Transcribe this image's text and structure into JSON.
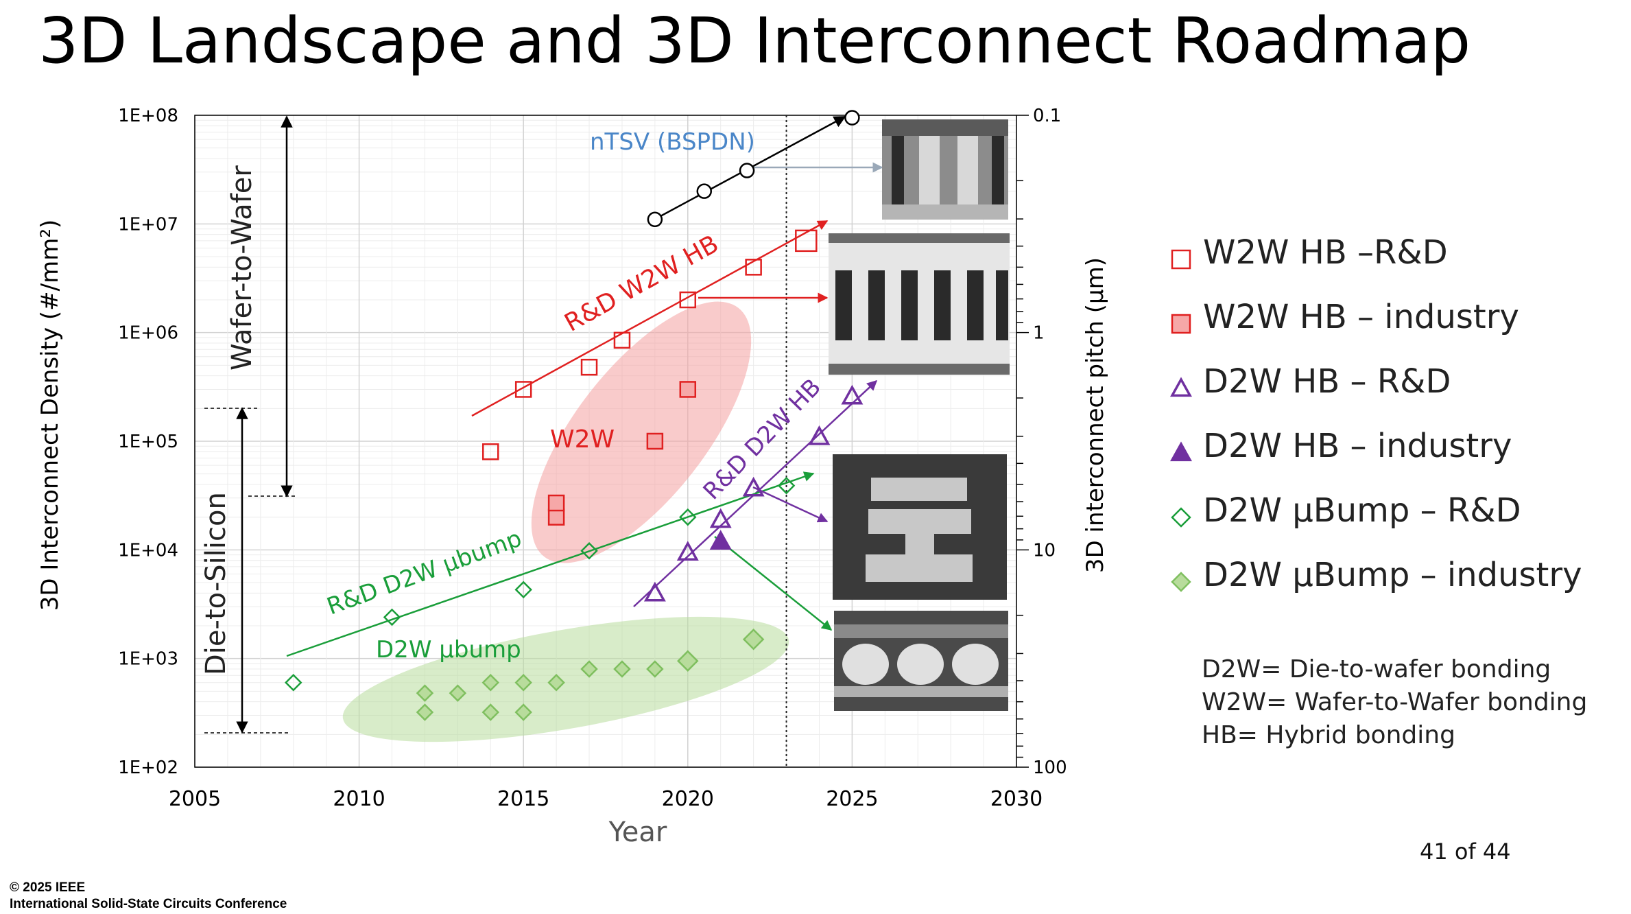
{
  "slide": {
    "title": "3D Landscape and 3D Interconnect Roadmap",
    "page": "41 of 44",
    "copyright_line1": "© 2025 IEEE",
    "copyright_line2": "International Solid-State Circuits Conference"
  },
  "legend": {
    "items": [
      {
        "marker": "open-square",
        "color": "#e02020",
        "label": "W2W HB –R&D"
      },
      {
        "marker": "filled-square",
        "color": "#e02020",
        "label": "W2W HB – industry"
      },
      {
        "marker": "open-triangle",
        "color": "#7030a0",
        "label": "D2W HB – R&D"
      },
      {
        "marker": "filled-triangle",
        "color": "#7030a0",
        "label": "D2W HB – industry"
      },
      {
        "marker": "open-diamond",
        "color": "#1a9e3a",
        "label": "D2W µBump – R&D"
      },
      {
        "marker": "filled-diamond",
        "color": "#7fbf5f",
        "label": "D2W µBump – industry"
      }
    ]
  },
  "notes": [
    "D2W= Die-to-wafer bonding",
    "W2W= Wafer-to-Wafer bonding",
    "HB= Hybrid bonding"
  ],
  "chart_data": {
    "type": "scatter",
    "xlabel": "Year",
    "ylabel": "3D Interconnect Density (#/mm²)",
    "y2label": "3D interconnect pitch (µm)",
    "xlim": [
      2005,
      2030
    ],
    "ylim": [
      100,
      100000000
    ],
    "yscale": "log",
    "x_ticks": [
      "2005",
      "2010",
      "2015",
      "2020",
      "2025",
      "2030"
    ],
    "y_ticks": [
      "1E+02",
      "1E+03",
      "1E+04",
      "1E+05",
      "1E+06",
      "1E+07",
      "1E+08"
    ],
    "y2_ticks": [
      "0.1",
      "1",
      "10",
      "100"
    ],
    "grid": true,
    "vertical_marker_year": 2023,
    "series": [
      {
        "name": "W2W HB –R&D",
        "color": "#e02020",
        "marker": "open-square",
        "x": [
          2014,
          2015,
          2017,
          2018,
          2020,
          2022,
          2023.6
        ],
        "y": [
          80000,
          300000,
          480000,
          850000,
          2000000,
          4000000,
          7000000
        ]
      },
      {
        "name": "W2W HB – industry",
        "color": "#e02020",
        "marker": "filled-square",
        "x": [
          2016,
          2016,
          2019,
          2020
        ],
        "y": [
          20000,
          27000,
          100000,
          300000
        ]
      },
      {
        "name": "D2W HB – R&D",
        "color": "#7030a0",
        "marker": "open-triangle",
        "x": [
          2019,
          2020,
          2021,
          2022,
          2024,
          2025
        ],
        "y": [
          4000,
          9500,
          19000,
          37000,
          110000,
          260000
        ]
      },
      {
        "name": "D2W HB – industry",
        "color": "#7030a0",
        "marker": "filled-triangle",
        "x": [
          2021
        ],
        "y": [
          12000
        ]
      },
      {
        "name": "D2W µBump – R&D",
        "color": "#1a9e3a",
        "marker": "open-diamond",
        "x": [
          2008,
          2011,
          2015,
          2017,
          2020,
          2023
        ],
        "y": [
          600,
          2400,
          4300,
          9800,
          20000,
          39000
        ]
      },
      {
        "name": "D2W µBump – industry",
        "color": "#7fbf5f",
        "marker": "filled-diamond",
        "x": [
          2012,
          2012,
          2013,
          2014,
          2014,
          2015,
          2015,
          2016,
          2017,
          2018,
          2019,
          2020,
          2022
        ],
        "y": [
          480,
          320,
          480,
          600,
          320,
          600,
          320,
          600,
          800,
          800,
          800,
          950,
          1500
        ]
      },
      {
        "name": "nTSV (BSPDN)",
        "color": "#000000",
        "marker": "open-circle",
        "x": [
          2019,
          2020.5,
          2021.8,
          2025
        ],
        "y": [
          11000000,
          20000000,
          31000000,
          95000000
        ]
      }
    ],
    "annotations": {
      "ntsv": "nTSV (BSPDN)",
      "rd_w2w_hb": "R&D W2W HB",
      "w2w": "W2W",
      "rd_d2w_hb": "R&D D2W HB",
      "rd_d2w_ubump": "R&D D2W µbump",
      "d2w_ubump": "D2W µbump",
      "wafer_to_wafer": "Wafer-to-Wafer",
      "die_to_silicon": "Die-to-Silicon"
    }
  }
}
